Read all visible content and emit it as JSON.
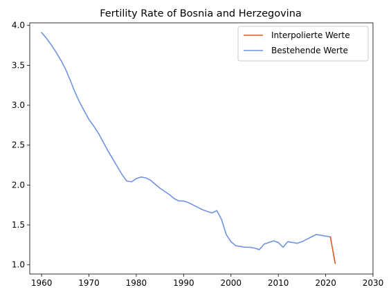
{
  "chart_data": {
    "type": "line",
    "title": "Fertility Rate of Bosnia and Herzegovina",
    "xlabel": "",
    "ylabel": "",
    "xlim": [
      1957.5,
      2030
    ],
    "ylim": [
      0.885,
      4.032
    ],
    "x_ticks": [
      1960,
      1970,
      1980,
      1990,
      2000,
      2010,
      2020,
      2030
    ],
    "y_ticks": [
      1.0,
      1.5,
      2.0,
      2.5,
      3.0,
      3.5,
      4.0
    ],
    "grid": false,
    "legend_position": "top-right",
    "series": [
      {
        "name": "Interpolierte Werte",
        "color": "#e8531f",
        "x": [
          2021,
          2022
        ],
        "y": [
          1.35,
          1.02
        ]
      },
      {
        "name": "Bestehende Werte",
        "color": "#6f93e0",
        "x": [
          1960,
          1961,
          1962,
          1963,
          1964,
          1965,
          1966,
          1967,
          1968,
          1969,
          1970,
          1971,
          1972,
          1973,
          1974,
          1975,
          1976,
          1977,
          1978,
          1979,
          1980,
          1981,
          1982,
          1983,
          1984,
          1985,
          1986,
          1987,
          1988,
          1989,
          1990,
          1991,
          1992,
          1993,
          1994,
          1995,
          1996,
          1997,
          1998,
          1999,
          2000,
          2001,
          2002,
          2003,
          2004,
          2005,
          2006,
          2007,
          2008,
          2009,
          2010,
          2011,
          2012,
          2013,
          2014,
          2015,
          2016,
          2017,
          2018,
          2019,
          2020,
          2021
        ],
        "y": [
          3.91,
          3.84,
          3.76,
          3.67,
          3.57,
          3.46,
          3.32,
          3.17,
          3.04,
          2.93,
          2.82,
          2.74,
          2.65,
          2.54,
          2.43,
          2.33,
          2.23,
          2.13,
          2.05,
          2.04,
          2.08,
          2.1,
          2.09,
          2.06,
          2.01,
          1.96,
          1.92,
          1.88,
          1.83,
          1.8,
          1.8,
          1.78,
          1.75,
          1.72,
          1.69,
          1.67,
          1.65,
          1.68,
          1.57,
          1.38,
          1.29,
          1.24,
          1.23,
          1.22,
          1.22,
          1.21,
          1.19,
          1.26,
          1.28,
          1.3,
          1.28,
          1.22,
          1.29,
          1.28,
          1.27,
          1.29,
          1.32,
          1.35,
          1.38,
          1.37,
          1.36,
          1.35
        ]
      }
    ]
  }
}
